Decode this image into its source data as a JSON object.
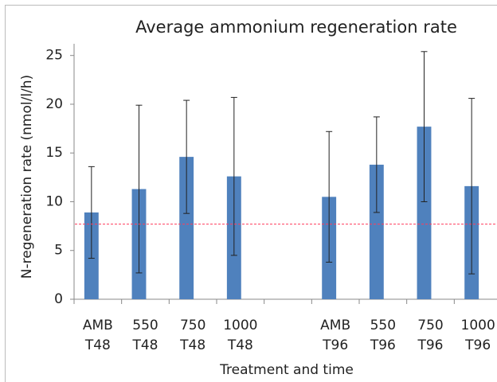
{
  "chart_data": {
    "type": "bar",
    "title": "Average ammonium regeneration rate",
    "x_label": "Treatment and time",
    "y_label": "N-regeneration rate (nmol/l/h)",
    "categories": [
      [
        "AMB",
        "T48"
      ],
      [
        "550",
        "T48"
      ],
      [
        "750",
        "T48"
      ],
      [
        "1000",
        "T48"
      ],
      null,
      [
        "AMB",
        "T96"
      ],
      [
        "550",
        "T96"
      ],
      [
        "750",
        "T96"
      ],
      [
        "1000",
        "T96"
      ]
    ],
    "values": [
      8.9,
      11.3,
      14.6,
      12.6,
      null,
      10.5,
      13.8,
      17.7,
      11.6
    ],
    "errors": [
      4.7,
      8.6,
      5.8,
      8.1,
      null,
      6.7,
      4.9,
      7.7,
      9.0
    ],
    "color": "#4f81bd",
    "reference_line": 7.7,
    "reference_color": "#ff3b5c",
    "ylim": [
      0,
      26.2
    ],
    "yticks": [
      0,
      5,
      10,
      15,
      20,
      25
    ],
    "grid": false
  }
}
